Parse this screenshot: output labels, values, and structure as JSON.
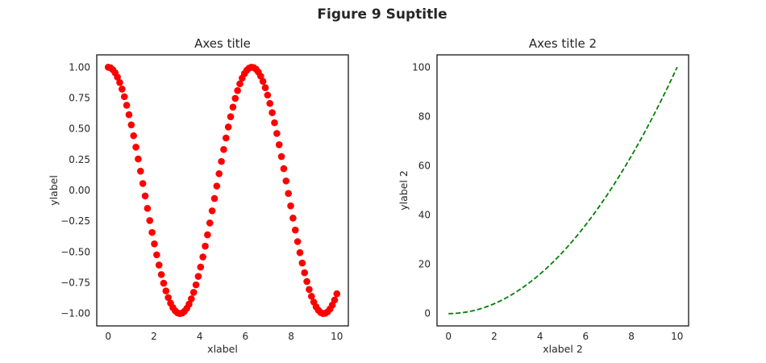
{
  "suptitle": "Figure 9 Suptitle",
  "chart_data": [
    {
      "type": "scatter",
      "title": "Axes title",
      "xlabel": "xlabel",
      "ylabel": "ylabel",
      "x_function": "linspace(0, 10, 100)",
      "y_function": "cos(x)",
      "n_points": 100,
      "xlim": [
        -0.5,
        10.5
      ],
      "ylim": [
        -1.1,
        1.1
      ],
      "xticks": [
        0,
        2,
        4,
        6,
        8,
        10
      ],
      "xtick_labels": [
        "0",
        "2",
        "4",
        "6",
        "8",
        "10"
      ],
      "yticks": [
        1.0,
        0.75,
        0.5,
        0.25,
        0.0,
        -0.25,
        -0.5,
        -0.75,
        -1.0
      ],
      "ytick_labels": [
        "1.00",
        "0.75",
        "0.50",
        "0.25",
        "0.00",
        "−0.25",
        "−0.50",
        "−0.75",
        "−1.00"
      ],
      "marker": "circle",
      "color": "#ff0000",
      "grid": false
    },
    {
      "type": "line",
      "title": "Axes title 2",
      "xlabel": "xlabel 2",
      "ylabel": "ylabel 2",
      "x_function": "linspace(0, 10, 100)",
      "y_function": "x^2",
      "n_points": 100,
      "xlim": [
        -0.5,
        10.5
      ],
      "ylim": [
        -5,
        105
      ],
      "xticks": [
        0,
        2,
        4,
        6,
        8,
        10
      ],
      "xtick_labels": [
        "0",
        "2",
        "4",
        "6",
        "8",
        "10"
      ],
      "yticks": [
        0,
        20,
        40,
        60,
        80,
        100
      ],
      "ytick_labels": [
        "0",
        "20",
        "40",
        "60",
        "80",
        "100"
      ],
      "line_style": "dashed",
      "color": "#008000",
      "grid": false
    }
  ]
}
